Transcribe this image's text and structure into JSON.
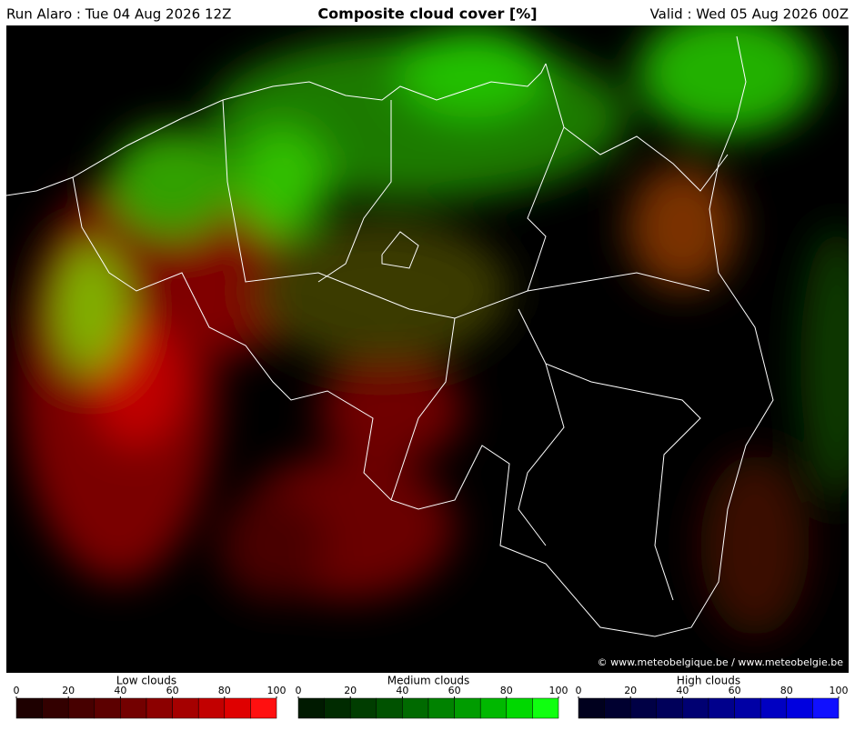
{
  "header": {
    "run": "Run Alaro : Tue 04 Aug 2026 12Z",
    "title": "Composite cloud cover [%]",
    "valid": "Valid : Wed 05 Aug 2026 00Z"
  },
  "map": {
    "copyright": "© www.meteobelgique.be / www.meteobelgie.be"
  },
  "legends": [
    {
      "title": "Low clouds",
      "ticks": [
        0,
        20,
        40,
        60,
        80,
        100
      ],
      "colors": [
        "#1e0000",
        "#330000",
        "#470000",
        "#5c0000",
        "#730000",
        "#8c0000",
        "#a50000",
        "#c20000",
        "#df0000",
        "#ff1010"
      ]
    },
    {
      "title": "Medium clouds",
      "ticks": [
        0,
        20,
        40,
        60,
        80,
        100
      ],
      "colors": [
        "#001a00",
        "#002b00",
        "#003d00",
        "#005200",
        "#006a00",
        "#008200",
        "#009c00",
        "#00b800",
        "#00d800",
        "#10ff10"
      ]
    },
    {
      "title": "High clouds",
      "ticks": [
        0,
        20,
        40,
        60,
        80,
        100
      ],
      "colors": [
        "#00001e",
        "#000030",
        "#000045",
        "#00005a",
        "#000072",
        "#00008c",
        "#0000a5",
        "#0000c2",
        "#0000df",
        "#1010ff"
      ]
    }
  ]
}
